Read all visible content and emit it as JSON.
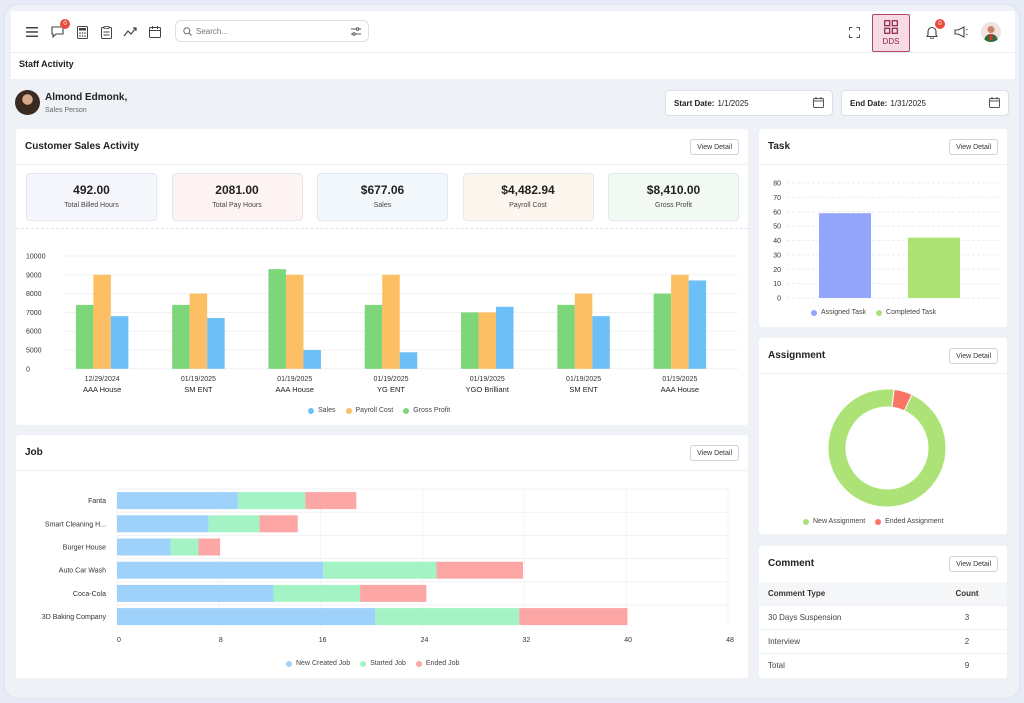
{
  "topbar": {
    "search_placeholder": "Search...",
    "messages_badge": "0",
    "notifications_badge": "0",
    "dds_label": "DDS"
  },
  "page_title": "Staff Activity",
  "user": {
    "name": "Almond Edmonk,",
    "role": "Sales Person"
  },
  "dates": {
    "start_label": "Start Date:",
    "start_value": "1/1/2025",
    "end_label": "End Date:",
    "end_value": "1/31/2025"
  },
  "view_detail": "View Detail",
  "sales_card": {
    "title": "Customer Sales Activity",
    "stats": [
      {
        "value": "492.00",
        "label": "Total Billed Hours",
        "bg": "#f6f7fc"
      },
      {
        "value": "2081.00",
        "label": "Total Pay Hours",
        "bg": "#fdf3f3"
      },
      {
        "value": "$677.06",
        "label": "Sales",
        "bg": "#f3f8fd"
      },
      {
        "value": "$4,482.94",
        "label": "Payroll Cost",
        "bg": "#fdf6ef"
      },
      {
        "value": "$8,410.00",
        "label": "Gross Profit",
        "bg": "#f2faf3"
      }
    ]
  },
  "task_card": {
    "title": "Task"
  },
  "assignment_card": {
    "title": "Assignment"
  },
  "job_card": {
    "title": "Job"
  },
  "comment_card": {
    "title": "Comment",
    "headers": [
      "Comment Type",
      "Count"
    ],
    "rows": [
      {
        "type": "30 Days Suspension",
        "count": "3"
      },
      {
        "type": "Interview",
        "count": "2"
      },
      {
        "type": "Total",
        "count": "9"
      }
    ]
  },
  "colors": {
    "sales": "#6cc0f7",
    "payroll": "#fdbf63",
    "gross": "#7dd67a",
    "assigned": "#94a6fb",
    "completed": "#ade276",
    "new_created": "#9fd2fa",
    "started": "#a3f3c4",
    "ended": "#fca6a6",
    "new_assignment": "#ade276",
    "ended_assignment": "#f97566"
  },
  "chart_data": [
    {
      "type": "bar",
      "name": "customer-sales-activity",
      "categories": [
        [
          "12/29/2024",
          "AAA House"
        ],
        [
          "01/19/2025",
          "SM ENT"
        ],
        [
          "01/19/2025",
          "AAA House"
        ],
        [
          "01/19/2025",
          "YG ENT"
        ],
        [
          "01/19/2025",
          "YGO Brilliant"
        ],
        [
          "01/19/2025",
          "SM ENT"
        ],
        [
          "01/19/2025",
          "AAA House"
        ]
      ],
      "series": [
        {
          "name": "Gross Profit",
          "values": [
            7400,
            7400,
            9300,
            7400,
            7000,
            7400,
            8000
          ]
        },
        {
          "name": "Payroll Cost",
          "values": [
            9000,
            8000,
            9000,
            9000,
            7000,
            8000,
            9000
          ]
        },
        {
          "name": "Sales",
          "values": [
            6800,
            6700,
            5000,
            4400,
            7300,
            6800,
            8700
          ]
        }
      ],
      "yticks": [
        "10000",
        "9000",
        "8000",
        "7000",
        "6000",
        "5000",
        "0"
      ],
      "legend": [
        "Sales",
        "Payroll Cost",
        "Gross Profit"
      ]
    },
    {
      "type": "bar",
      "name": "task",
      "categories": [
        "Assigned Task",
        "Completed Task"
      ],
      "values": [
        59,
        42
      ],
      "ylim": [
        0,
        80
      ],
      "yticks": [
        "80",
        "70",
        "60",
        "50",
        "40",
        "30",
        "20",
        "10",
        "0"
      ],
      "legend": [
        "Assigned Task",
        "Completed Task"
      ]
    },
    {
      "type": "pie",
      "name": "assignment",
      "labels": [
        "New Assignment",
        "Ended Assignment"
      ],
      "values": [
        95,
        5
      ],
      "legend": [
        "New Assignment",
        "Ended Assignment"
      ]
    },
    {
      "type": "bar",
      "name": "job",
      "orientation": "horizontal",
      "stacked": true,
      "categories": [
        "Fanta",
        "Smart Cleaning H...",
        "Burger House",
        "Auto Car Wash",
        "Coca-Cola",
        "3D Baking Company"
      ],
      "series": [
        {
          "name": "New Created Job",
          "values": [
            9.5,
            7.2,
            4.2,
            16.2,
            12.3,
            20.3
          ]
        },
        {
          "name": "Started Job",
          "values": [
            5.3,
            4.0,
            2.2,
            8.9,
            6.8,
            11.3
          ]
        },
        {
          "name": "Ended Job",
          "values": [
            4.0,
            3.0,
            1.7,
            6.8,
            5.2,
            8.5
          ]
        }
      ],
      "xlim": [
        0,
        48
      ],
      "xticks": [
        "0",
        "8",
        "16",
        "24",
        "32",
        "40",
        "48"
      ],
      "legend": [
        "New Created Job",
        "Started Job",
        "Ended Job"
      ]
    }
  ]
}
